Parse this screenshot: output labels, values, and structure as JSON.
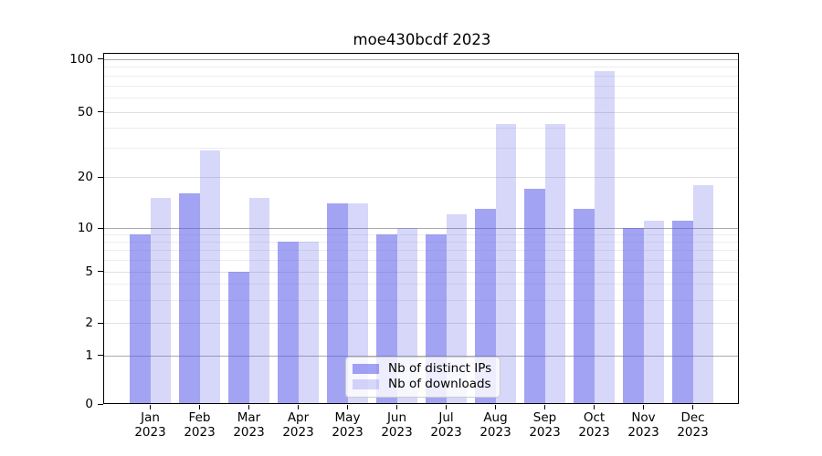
{
  "title": "moe430bcdf 2023",
  "chart_data": {
    "type": "bar",
    "title": "moe430bcdf 2023",
    "categories": [
      "Jan",
      "Feb",
      "Mar",
      "Apr",
      "May",
      "Jun",
      "Jul",
      "Aug",
      "Sep",
      "Oct",
      "Nov",
      "Dec"
    ],
    "category_year": "2023",
    "series": [
      {
        "name": "Nb of distinct IPs",
        "color": "rgba(87,87,235,0.55)",
        "values": [
          9,
          16,
          5,
          8,
          14,
          9,
          9,
          13,
          17,
          13,
          10,
          11
        ]
      },
      {
        "name": "Nb of downloads",
        "color": "rgba(87,87,235,0.24)",
        "values": [
          15,
          29,
          15,
          8,
          14,
          10,
          12,
          42,
          42,
          85,
          11,
          18
        ]
      }
    ],
    "xlabel": "",
    "ylabel": "",
    "yscale": "symlog",
    "ylim": [
      0,
      108
    ],
    "ytick_values": [
      0,
      1,
      2,
      5,
      10,
      20,
      50,
      100
    ],
    "ytick_labels": [
      "0",
      "1",
      "2",
      "5",
      "10",
      "20",
      "50",
      "100"
    ],
    "decade_ticks": [
      1,
      10,
      100
    ],
    "minor_gridline_values": [
      3,
      4,
      6,
      7,
      8,
      9,
      30,
      40,
      60,
      70,
      80,
      90
    ],
    "grid": true,
    "legend_position": "lower center"
  },
  "colors": {
    "bar_ips": "rgba(87,87,235,0.55)",
    "bar_downloads": "rgba(87,87,235,0.24)",
    "decade_gridline": "#ababab",
    "major_gridline": "#e0e0e0",
    "minor_gridline": "#ededed",
    "spine": "#000000",
    "legend_border": "#cccccc",
    "text": "#000000"
  }
}
